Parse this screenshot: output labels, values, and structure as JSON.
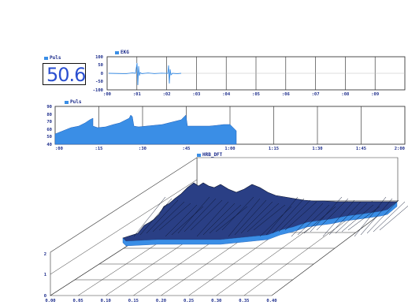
{
  "puls_display": {
    "label": "Puls",
    "value": "50.6"
  },
  "ekg_panel": {
    "label": "EKG",
    "y_ticks": [
      "100",
      "50",
      "0",
      "-50",
      "-100"
    ],
    "x_ticks": [
      ":00",
      ":01",
      ":02",
      ":03",
      ":04",
      ":05",
      ":06",
      ":07",
      ":08",
      ":09"
    ]
  },
  "puls_panel": {
    "label": "Puls",
    "y_ticks": [
      "90",
      "80",
      "70",
      "60",
      "50",
      "40"
    ],
    "x_ticks": [
      ":00",
      ":15",
      ":30",
      ":45",
      "1:00",
      "1:15",
      "1:30",
      "1:45",
      "2:00"
    ]
  },
  "surface_panel": {
    "label": "HRB_DFT",
    "z_ticks": [
      "2",
      "1",
      "0"
    ],
    "x_ticks": [
      "0.00",
      "0.05",
      "0.10",
      "0.15",
      "0.20",
      "0.25",
      "0.30",
      "0.35",
      "0.40"
    ]
  },
  "colors": {
    "accent": "#3a8ee6",
    "text": "#1a2a8a",
    "grid": "#222222",
    "surface_dark": "#0c1530"
  }
}
